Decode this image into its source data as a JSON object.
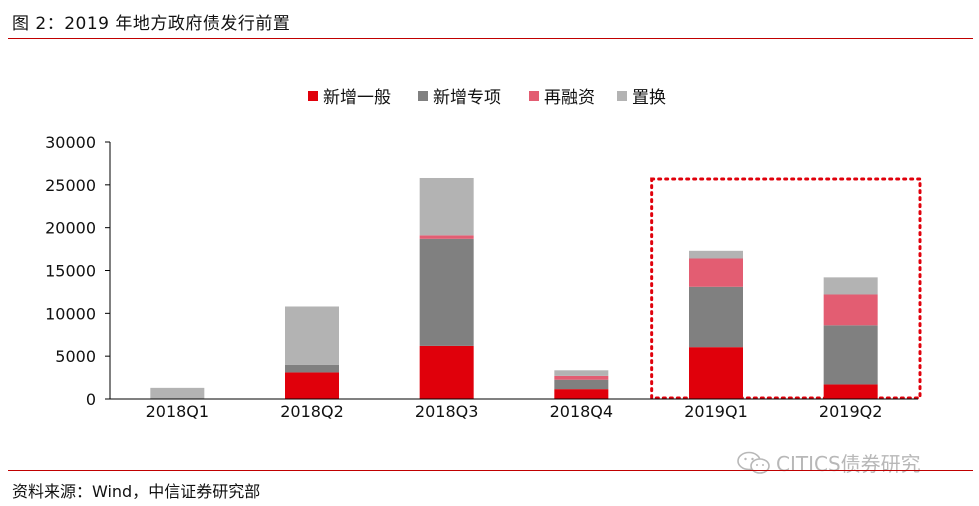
{
  "figure": {
    "title": "图 2：2019 年地方政府债发行前置",
    "source": "资料来源：Wind，中信证券研究部",
    "watermark": "CITICS债券研究",
    "watermark_icon": "wechat-icon"
  },
  "colors": {
    "rule": "#c00000",
    "highlight_box": "#e0000b"
  },
  "chart_data": {
    "type": "bar",
    "stacked": true,
    "categories": [
      "2018Q1",
      "2018Q2",
      "2018Q3",
      "2018Q4",
      "2019Q1",
      "2019Q2"
    ],
    "series": [
      {
        "name": "新增一般",
        "color": "#e0000b",
        "values": [
          0,
          3100,
          6200,
          1150,
          6050,
          1700
        ]
      },
      {
        "name": "新增专项",
        "color": "#808080",
        "values": [
          0,
          900,
          12500,
          1100,
          7050,
          6900
        ]
      },
      {
        "name": "再融资",
        "color": "#e35d72",
        "values": [
          0,
          0,
          400,
          450,
          3300,
          3600
        ]
      },
      {
        "name": "置换",
        "color": "#b3b3b3",
        "values": [
          1300,
          6800,
          6700,
          650,
          900,
          2000
        ]
      }
    ],
    "ylim": [
      0,
      30000
    ],
    "yticks": [
      "0",
      "5000",
      "10000",
      "15000",
      "20000",
      "25000",
      "30000"
    ],
    "legend_position": "top-center",
    "grid": false,
    "highlight": [
      "2019Q1",
      "2019Q2"
    ]
  }
}
